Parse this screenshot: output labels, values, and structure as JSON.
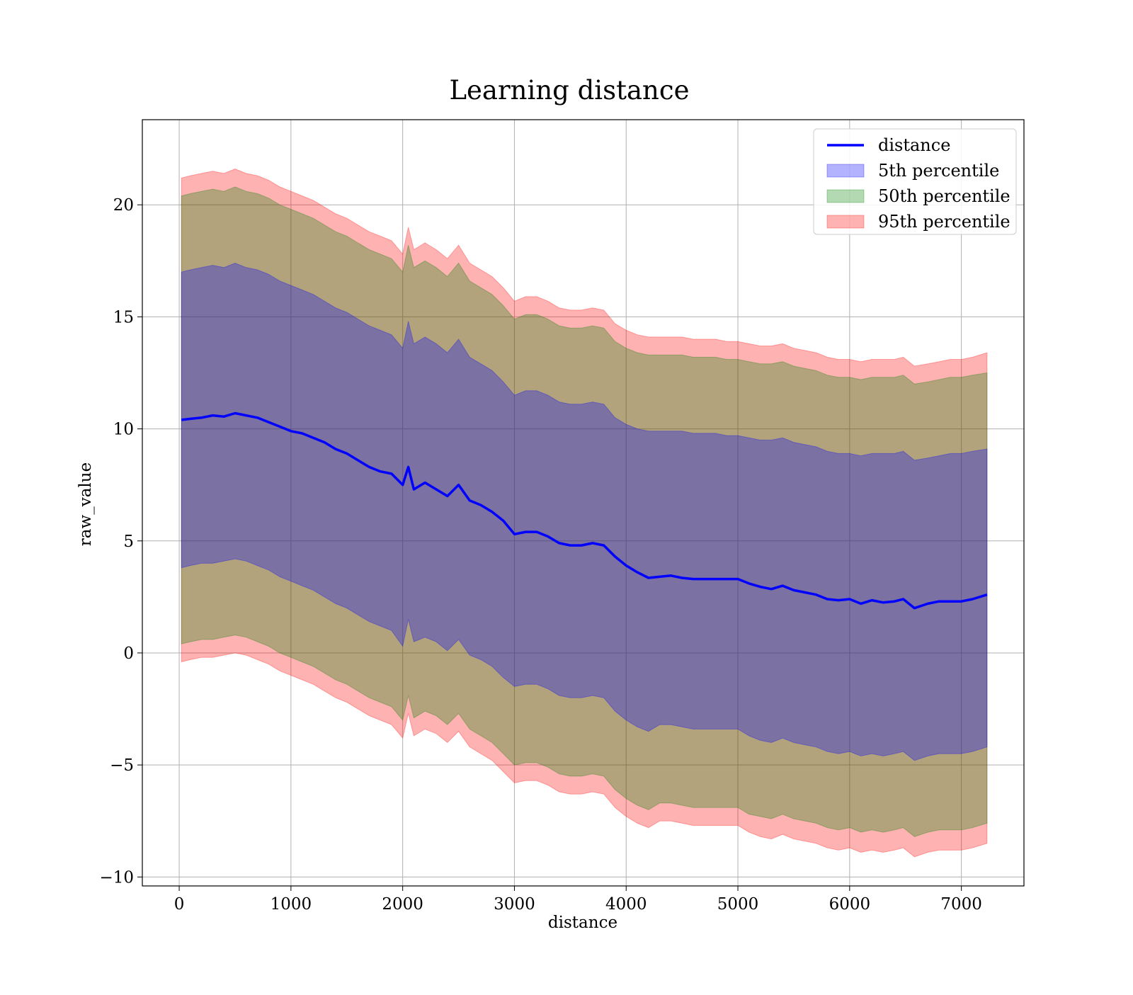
{
  "chart_data": {
    "type": "area",
    "title": "Learning distance",
    "xlabel": "distance",
    "ylabel": "raw_value",
    "xlim": [
      -330,
      7560
    ],
    "ylim": [
      -10.4,
      23.8
    ],
    "x_ticks": [
      0,
      1000,
      2000,
      3000,
      4000,
      5000,
      6000,
      7000
    ],
    "x_tick_labels": [
      "0",
      "1000",
      "2000",
      "3000",
      "4000",
      "5000",
      "6000",
      "7000"
    ],
    "y_ticks": [
      -10,
      -5,
      0,
      5,
      10,
      15,
      20
    ],
    "y_tick_labels": [
      "−10",
      "−5",
      "0",
      "5",
      "10",
      "15",
      "20"
    ],
    "grid": true,
    "legend_position": "top-right",
    "x": [
      20,
      100,
      200,
      300,
      400,
      500,
      600,
      700,
      800,
      900,
      1000,
      1100,
      1200,
      1300,
      1400,
      1500,
      1600,
      1700,
      1800,
      1900,
      2000,
      2050,
      2100,
      2200,
      2300,
      2400,
      2500,
      2600,
      2700,
      2800,
      2900,
      3000,
      3100,
      3200,
      3300,
      3400,
      3500,
      3600,
      3700,
      3800,
      3900,
      4000,
      4100,
      4200,
      4300,
      4400,
      4500,
      4600,
      4700,
      4800,
      4900,
      5000,
      5100,
      5200,
      5300,
      5400,
      5500,
      5600,
      5700,
      5800,
      5900,
      6000,
      6100,
      6200,
      6300,
      6400,
      6480,
      6580,
      6700,
      6800,
      6900,
      7000,
      7100,
      7230
    ],
    "series": [
      {
        "name": "distance",
        "kind": "line",
        "color": "#0000ff",
        "values": [
          10.4,
          10.45,
          10.5,
          10.6,
          10.55,
          10.7,
          10.6,
          10.5,
          10.3,
          10.1,
          9.9,
          9.8,
          9.6,
          9.4,
          9.1,
          8.9,
          8.6,
          8.3,
          8.1,
          8.0,
          7.5,
          8.3,
          7.3,
          7.6,
          7.3,
          7.0,
          7.5,
          6.8,
          6.6,
          6.3,
          5.9,
          5.3,
          5.4,
          5.4,
          5.2,
          4.9,
          4.8,
          4.8,
          4.9,
          4.8,
          4.3,
          3.9,
          3.6,
          3.35,
          3.4,
          3.45,
          3.35,
          3.3,
          3.3,
          3.3,
          3.3,
          3.3,
          3.1,
          2.95,
          2.85,
          3.0,
          2.8,
          2.7,
          2.6,
          2.4,
          2.35,
          2.4,
          2.2,
          2.35,
          2.25,
          2.3,
          2.4,
          2.0,
          2.2,
          2.3,
          2.3,
          2.3,
          2.4,
          2.6
        ]
      },
      {
        "name": "5th percentile",
        "kind": "band",
        "color": "#0000ff",
        "alpha": 0.3,
        "lower": [
          3.8,
          3.9,
          4.0,
          4.0,
          4.1,
          4.2,
          4.1,
          3.9,
          3.7,
          3.4,
          3.2,
          3.0,
          2.8,
          2.5,
          2.2,
          2.0,
          1.7,
          1.4,
          1.2,
          1.0,
          0.3,
          1.5,
          0.5,
          0.7,
          0.5,
          0.1,
          0.6,
          -0.1,
          -0.3,
          -0.6,
          -1.1,
          -1.5,
          -1.4,
          -1.4,
          -1.6,
          -1.9,
          -2.0,
          -2.0,
          -1.9,
          -2.0,
          -2.6,
          -3.0,
          -3.3,
          -3.5,
          -3.2,
          -3.2,
          -3.3,
          -3.4,
          -3.4,
          -3.4,
          -3.4,
          -3.4,
          -3.7,
          -3.9,
          -4.0,
          -3.8,
          -4.0,
          -4.1,
          -4.2,
          -4.4,
          -4.5,
          -4.4,
          -4.6,
          -4.5,
          -4.6,
          -4.5,
          -4.4,
          -4.8,
          -4.6,
          -4.5,
          -4.5,
          -4.5,
          -4.4,
          -4.2
        ],
        "upper": [
          17.0,
          17.1,
          17.2,
          17.3,
          17.2,
          17.4,
          17.2,
          17.1,
          16.9,
          16.6,
          16.4,
          16.2,
          16.0,
          15.7,
          15.4,
          15.2,
          14.9,
          14.6,
          14.4,
          14.2,
          13.6,
          14.8,
          13.8,
          14.1,
          13.8,
          13.4,
          14.0,
          13.2,
          12.9,
          12.6,
          12.1,
          11.5,
          11.7,
          11.7,
          11.5,
          11.2,
          11.1,
          11.1,
          11.2,
          11.1,
          10.5,
          10.2,
          10.0,
          9.9,
          9.9,
          9.9,
          9.9,
          9.8,
          9.8,
          9.8,
          9.7,
          9.7,
          9.6,
          9.5,
          9.5,
          9.6,
          9.4,
          9.3,
          9.2,
          9.0,
          8.9,
          8.9,
          8.8,
          8.9,
          8.9,
          8.9,
          9.0,
          8.6,
          8.7,
          8.8,
          8.9,
          8.9,
          9.0,
          9.1
        ]
      },
      {
        "name": "50th percentile",
        "kind": "band",
        "color": "#008000",
        "alpha": 0.3,
        "lower": [
          0.4,
          0.5,
          0.6,
          0.6,
          0.7,
          0.8,
          0.7,
          0.5,
          0.3,
          0.0,
          -0.2,
          -0.4,
          -0.6,
          -0.9,
          -1.2,
          -1.4,
          -1.7,
          -2.0,
          -2.2,
          -2.4,
          -3.0,
          -1.9,
          -2.9,
          -2.6,
          -2.8,
          -3.2,
          -2.7,
          -3.4,
          -3.7,
          -4.0,
          -4.5,
          -5.0,
          -4.9,
          -4.9,
          -5.1,
          -5.4,
          -5.5,
          -5.5,
          -5.4,
          -5.5,
          -6.1,
          -6.5,
          -6.8,
          -7.0,
          -6.7,
          -6.7,
          -6.8,
          -6.9,
          -6.9,
          -6.9,
          -6.9,
          -6.9,
          -7.2,
          -7.3,
          -7.4,
          -7.2,
          -7.4,
          -7.5,
          -7.6,
          -7.8,
          -7.9,
          -7.8,
          -8.0,
          -7.9,
          -8.0,
          -7.9,
          -7.8,
          -8.2,
          -8.0,
          -7.9,
          -7.9,
          -7.9,
          -7.8,
          -7.6
        ],
        "upper": [
          20.4,
          20.5,
          20.6,
          20.7,
          20.6,
          20.8,
          20.6,
          20.5,
          20.3,
          20.0,
          19.8,
          19.6,
          19.4,
          19.1,
          18.8,
          18.6,
          18.3,
          18.0,
          17.8,
          17.6,
          17.0,
          18.2,
          17.2,
          17.5,
          17.2,
          16.8,
          17.4,
          16.6,
          16.3,
          16.0,
          15.5,
          14.9,
          15.1,
          15.1,
          14.9,
          14.6,
          14.5,
          14.5,
          14.6,
          14.5,
          13.9,
          13.6,
          13.4,
          13.3,
          13.3,
          13.3,
          13.3,
          13.2,
          13.2,
          13.2,
          13.1,
          13.1,
          13.0,
          12.9,
          12.9,
          13.0,
          12.8,
          12.7,
          12.6,
          12.4,
          12.3,
          12.3,
          12.2,
          12.3,
          12.3,
          12.3,
          12.4,
          12.0,
          12.1,
          12.2,
          12.3,
          12.3,
          12.4,
          12.5
        ]
      },
      {
        "name": "95th percentile",
        "kind": "band",
        "color": "#ff0000",
        "alpha": 0.3,
        "lower": [
          -0.4,
          -0.3,
          -0.2,
          -0.2,
          -0.1,
          0.0,
          -0.1,
          -0.3,
          -0.5,
          -0.8,
          -1.0,
          -1.2,
          -1.4,
          -1.7,
          -2.0,
          -2.2,
          -2.5,
          -2.8,
          -3.0,
          -3.2,
          -3.8,
          -2.7,
          -3.7,
          -3.4,
          -3.6,
          -4.0,
          -3.5,
          -4.2,
          -4.5,
          -4.8,
          -5.3,
          -5.8,
          -5.7,
          -5.7,
          -5.9,
          -6.2,
          -6.3,
          -6.3,
          -6.2,
          -6.3,
          -6.9,
          -7.3,
          -7.6,
          -7.8,
          -7.5,
          -7.5,
          -7.6,
          -7.7,
          -7.7,
          -7.7,
          -7.7,
          -7.7,
          -8.0,
          -8.2,
          -8.3,
          -8.1,
          -8.3,
          -8.4,
          -8.5,
          -8.7,
          -8.8,
          -8.7,
          -8.9,
          -8.8,
          -8.9,
          -8.8,
          -8.7,
          -9.1,
          -8.9,
          -8.8,
          -8.8,
          -8.8,
          -8.7,
          -8.5
        ],
        "upper": [
          21.2,
          21.3,
          21.4,
          21.5,
          21.4,
          21.6,
          21.4,
          21.3,
          21.1,
          20.8,
          20.6,
          20.4,
          20.2,
          19.9,
          19.6,
          19.4,
          19.1,
          18.8,
          18.6,
          18.4,
          17.8,
          19.0,
          18.0,
          18.3,
          18.0,
          17.6,
          18.2,
          17.4,
          17.1,
          16.8,
          16.3,
          15.7,
          15.9,
          15.9,
          15.7,
          15.4,
          15.3,
          15.3,
          15.4,
          15.3,
          14.7,
          14.4,
          14.2,
          14.1,
          14.1,
          14.1,
          14.1,
          14.0,
          14.0,
          14.0,
          13.9,
          13.9,
          13.8,
          13.7,
          13.7,
          13.8,
          13.6,
          13.5,
          13.4,
          13.2,
          13.1,
          13.1,
          13.0,
          13.1,
          13.1,
          13.1,
          13.2,
          12.8,
          12.9,
          13.0,
          13.1,
          13.1,
          13.2,
          13.4
        ]
      }
    ]
  }
}
